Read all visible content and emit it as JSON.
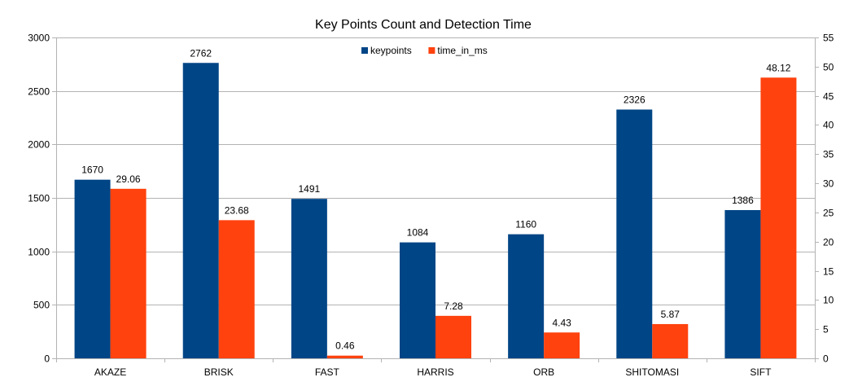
{
  "chart_data": {
    "type": "bar",
    "title": "Key Points Count and Detection Time",
    "categories": [
      "AKAZE",
      "BRISK",
      "FAST",
      "HARRIS",
      "ORB",
      "SHITOMASI",
      "SIFT"
    ],
    "series": [
      {
        "name": "keypoints",
        "axis": "left",
        "color": "#004586",
        "values": [
          1670,
          2762,
          1491,
          1084,
          1160,
          2326,
          1386
        ],
        "labels": [
          "1670",
          "2762",
          "1491",
          "1084",
          "1160",
          "2326",
          "1386"
        ]
      },
      {
        "name": "time_in_ms",
        "axis": "right",
        "color": "#ff420e",
        "values": [
          29.06,
          23.68,
          0.46,
          7.28,
          4.43,
          5.87,
          48.12
        ],
        "labels": [
          "29.06",
          "23.68",
          "0.46",
          "7.28",
          "4.43",
          "5.87",
          "48.12"
        ]
      }
    ],
    "y_left": {
      "range": [
        0,
        3000
      ],
      "ticks": [
        0,
        500,
        1000,
        1500,
        2000,
        2500,
        3000
      ]
    },
    "y_right": {
      "range": [
        0,
        55
      ],
      "ticks": [
        0,
        5,
        10,
        15,
        20,
        25,
        30,
        35,
        40,
        45,
        50,
        55
      ]
    },
    "grid": true,
    "legend_position": "top-center"
  }
}
